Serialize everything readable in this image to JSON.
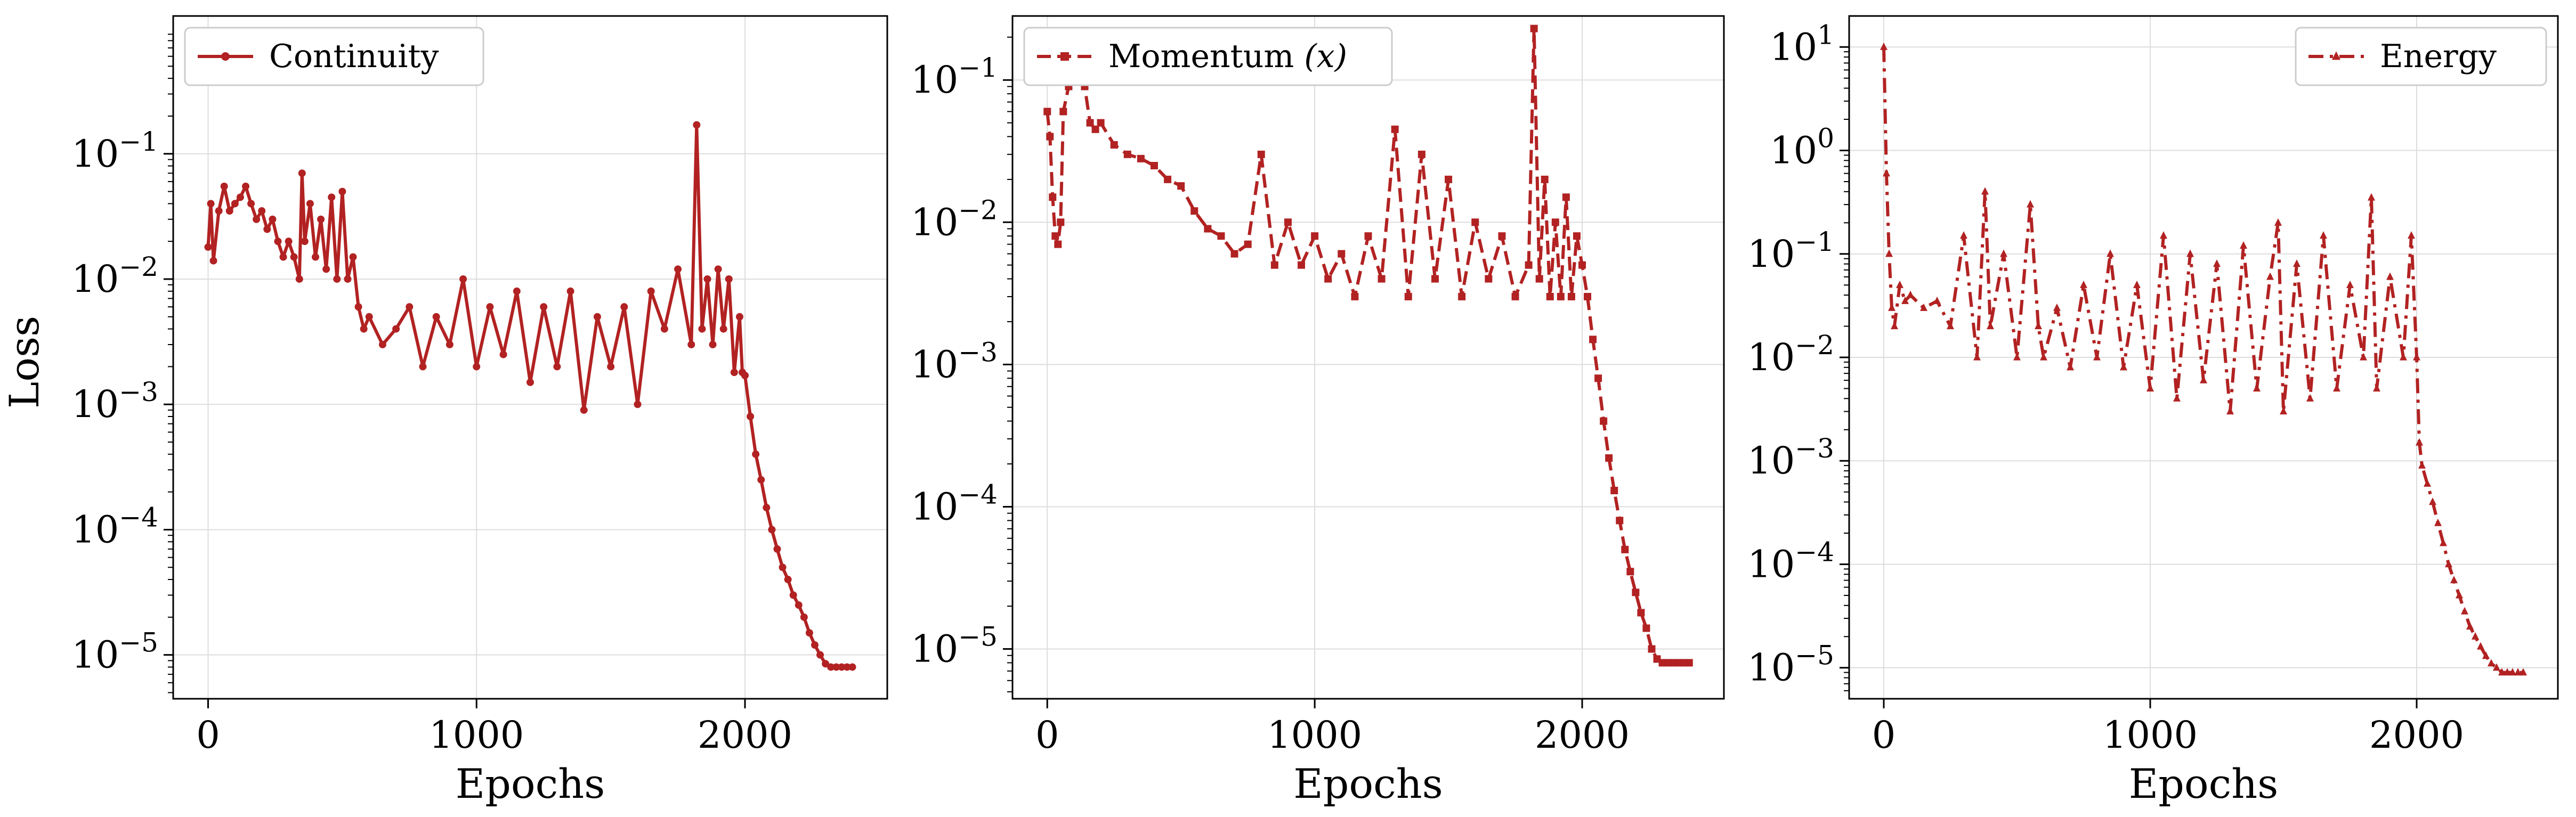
{
  "figure": {
    "ylabel": "Loss",
    "line_color": "#b22222",
    "grid": true
  },
  "chart_data": [
    {
      "type": "line",
      "title": "",
      "xlabel": "Epochs",
      "ylabel": "Loss",
      "yscale": "log",
      "xlim": [
        -130,
        2530
      ],
      "ylim_exponent": [
        -5.35,
        0.1
      ],
      "xticks": [
        {
          "value": 0,
          "label": "0"
        },
        {
          "value": 1000,
          "label": "1000"
        },
        {
          "value": 2000,
          "label": "2000"
        }
      ],
      "yticks": [
        {
          "exp": -5,
          "base": "10",
          "sup": "−5"
        },
        {
          "exp": -4,
          "base": "10",
          "sup": "−4"
        },
        {
          "exp": -3,
          "base": "10",
          "sup": "−3"
        },
        {
          "exp": -2,
          "base": "10",
          "sup": "−2"
        },
        {
          "exp": -1,
          "base": "10",
          "sup": "−1"
        }
      ],
      "legend": {
        "position": "upper-left",
        "label": "Continuity",
        "marker": "circle",
        "linestyle": "solid"
      },
      "series": [
        {
          "name": "Continuity",
          "color": "#b22222",
          "x": [
            0,
            10,
            20,
            40,
            60,
            80,
            100,
            120,
            140,
            160,
            180,
            200,
            220,
            240,
            260,
            280,
            300,
            320,
            340,
            350,
            360,
            380,
            400,
            420,
            440,
            460,
            480,
            500,
            520,
            540,
            560,
            580,
            600,
            650,
            700,
            750,
            800,
            850,
            900,
            950,
            1000,
            1050,
            1100,
            1150,
            1200,
            1250,
            1300,
            1350,
            1400,
            1450,
            1500,
            1550,
            1600,
            1650,
            1700,
            1750,
            1800,
            1820,
            1840,
            1860,
            1880,
            1900,
            1920,
            1940,
            1960,
            1980,
            1990,
            2000,
            2020,
            2040,
            2060,
            2080,
            2100,
            2120,
            2140,
            2160,
            2180,
            2200,
            2220,
            2240,
            2260,
            2280,
            2300,
            2320,
            2340,
            2360,
            2380,
            2400
          ],
          "y": [
            0.018,
            0.04,
            0.014,
            0.035,
            0.055,
            0.035,
            0.04,
            0.045,
            0.055,
            0.04,
            0.03,
            0.035,
            0.025,
            0.03,
            0.02,
            0.015,
            0.02,
            0.015,
            0.01,
            0.07,
            0.02,
            0.04,
            0.015,
            0.03,
            0.012,
            0.045,
            0.01,
            0.05,
            0.01,
            0.015,
            0.006,
            0.004,
            0.005,
            0.003,
            0.004,
            0.006,
            0.002,
            0.005,
            0.003,
            0.01,
            0.002,
            0.006,
            0.0025,
            0.008,
            0.0015,
            0.006,
            0.002,
            0.008,
            0.0009,
            0.005,
            0.002,
            0.006,
            0.001,
            0.008,
            0.004,
            0.012,
            0.003,
            0.17,
            0.004,
            0.01,
            0.003,
            0.012,
            0.004,
            0.01,
            0.0018,
            0.005,
            0.0018,
            0.0017,
            0.0008,
            0.0004,
            0.00025,
            0.00015,
            0.0001,
            7e-05,
            5e-05,
            4e-05,
            3e-05,
            2.5e-05,
            2e-05,
            1.5e-05,
            1.2e-05,
            1e-05,
            8.5e-06,
            8e-06,
            8e-06,
            8e-06,
            8e-06,
            8e-06
          ]
        }
      ]
    },
    {
      "type": "line",
      "title": "",
      "xlabel": "Epochs",
      "ylabel": "",
      "yscale": "log",
      "xlim": [
        -130,
        2530
      ],
      "ylim_exponent": [
        -5.35,
        -0.55
      ],
      "xticks": [
        {
          "value": 0,
          "label": "0"
        },
        {
          "value": 1000,
          "label": "1000"
        },
        {
          "value": 2000,
          "label": "2000"
        }
      ],
      "yticks": [
        {
          "exp": -5,
          "base": "10",
          "sup": "−5"
        },
        {
          "exp": -4,
          "base": "10",
          "sup": "−4"
        },
        {
          "exp": -3,
          "base": "10",
          "sup": "−3"
        },
        {
          "exp": -2,
          "base": "10",
          "sup": "−2"
        },
        {
          "exp": -1,
          "base": "10",
          "sup": "−1"
        }
      ],
      "legend": {
        "position": "upper-left",
        "label": "Momentum",
        "label_math": "(x)",
        "marker": "square",
        "linestyle": "dashed"
      },
      "series": [
        {
          "name": "Momentum (x)",
          "color": "#b22222",
          "x": [
            0,
            10,
            20,
            30,
            40,
            50,
            60,
            80,
            100,
            120,
            140,
            160,
            180,
            200,
            250,
            300,
            350,
            400,
            450,
            500,
            550,
            600,
            650,
            700,
            750,
            800,
            850,
            900,
            950,
            1000,
            1050,
            1100,
            1150,
            1200,
            1250,
            1300,
            1350,
            1400,
            1450,
            1500,
            1550,
            1600,
            1650,
            1700,
            1750,
            1800,
            1820,
            1840,
            1860,
            1880,
            1900,
            1920,
            1940,
            1960,
            1980,
            2000,
            2020,
            2040,
            2060,
            2080,
            2100,
            2120,
            2140,
            2160,
            2180,
            2200,
            2220,
            2240,
            2260,
            2280,
            2300,
            2320,
            2340,
            2360,
            2380,
            2400
          ],
          "y": [
            0.06,
            0.04,
            0.015,
            0.008,
            0.007,
            0.01,
            0.06,
            0.09,
            0.1,
            0.1,
            0.09,
            0.05,
            0.045,
            0.05,
            0.035,
            0.03,
            0.028,
            0.025,
            0.02,
            0.018,
            0.012,
            0.009,
            0.008,
            0.006,
            0.007,
            0.03,
            0.005,
            0.01,
            0.005,
            0.008,
            0.004,
            0.006,
            0.003,
            0.008,
            0.004,
            0.045,
            0.003,
            0.03,
            0.004,
            0.02,
            0.003,
            0.01,
            0.004,
            0.008,
            0.003,
            0.005,
            0.23,
            0.004,
            0.02,
            0.003,
            0.01,
            0.003,
            0.015,
            0.003,
            0.008,
            0.005,
            0.003,
            0.0015,
            0.0008,
            0.0004,
            0.00022,
            0.00013,
            8e-05,
            5e-05,
            3.5e-05,
            2.5e-05,
            1.8e-05,
            1.4e-05,
            1e-05,
            8.5e-06,
            8e-06,
            8e-06,
            8e-06,
            8e-06,
            8e-06,
            8e-06
          ]
        }
      ]
    },
    {
      "type": "line",
      "title": "",
      "xlabel": "Epochs",
      "ylabel": "",
      "yscale": "log",
      "xlim": [
        -130,
        2530
      ],
      "ylim_exponent": [
        -5.3,
        1.3
      ],
      "xticks": [
        {
          "value": 0,
          "label": "0"
        },
        {
          "value": 1000,
          "label": "1000"
        },
        {
          "value": 2000,
          "label": "2000"
        }
      ],
      "yticks": [
        {
          "exp": -5,
          "base": "10",
          "sup": "−5"
        },
        {
          "exp": -4,
          "base": "10",
          "sup": "−4"
        },
        {
          "exp": -3,
          "base": "10",
          "sup": "−3"
        },
        {
          "exp": -2,
          "base": "10",
          "sup": "−2"
        },
        {
          "exp": -1,
          "base": "10",
          "sup": "−1"
        },
        {
          "exp": 0,
          "base": "10",
          "sup": "0"
        },
        {
          "exp": 1,
          "base": "10",
          "sup": "1"
        }
      ],
      "legend": {
        "position": "upper-right",
        "label": "Energy",
        "marker": "triangle",
        "linestyle": "dashdot"
      },
      "series": [
        {
          "name": "Energy",
          "color": "#b22222",
          "x": [
            0,
            10,
            20,
            30,
            40,
            60,
            80,
            100,
            150,
            200,
            250,
            300,
            350,
            380,
            400,
            450,
            500,
            550,
            580,
            600,
            650,
            700,
            750,
            800,
            850,
            900,
            950,
            1000,
            1050,
            1100,
            1150,
            1200,
            1250,
            1300,
            1350,
            1400,
            1450,
            1480,
            1500,
            1550,
            1600,
            1650,
            1700,
            1750,
            1800,
            1830,
            1850,
            1900,
            1950,
            1980,
            2000,
            2010,
            2020,
            2040,
            2060,
            2080,
            2100,
            2120,
            2140,
            2160,
            2180,
            2200,
            2220,
            2240,
            2260,
            2280,
            2300,
            2320,
            2340,
            2360,
            2380,
            2400
          ],
          "y": [
            10,
            0.6,
            0.1,
            0.03,
            0.02,
            0.05,
            0.035,
            0.04,
            0.03,
            0.035,
            0.02,
            0.15,
            0.01,
            0.4,
            0.02,
            0.1,
            0.01,
            0.3,
            0.02,
            0.01,
            0.03,
            0.008,
            0.05,
            0.01,
            0.1,
            0.008,
            0.05,
            0.005,
            0.15,
            0.004,
            0.1,
            0.006,
            0.08,
            0.003,
            0.12,
            0.005,
            0.06,
            0.2,
            0.003,
            0.08,
            0.004,
            0.15,
            0.005,
            0.05,
            0.01,
            0.35,
            0.005,
            0.06,
            0.01,
            0.15,
            0.01,
            0.0015,
            0.0009,
            0.0006,
            0.0004,
            0.00025,
            0.00016,
            0.0001,
            7e-05,
            5e-05,
            3.5e-05,
            2.5e-05,
            2e-05,
            1.6e-05,
            1.3e-05,
            1.1e-05,
            1e-05,
            9e-06,
            9e-06,
            9e-06,
            9e-06,
            9e-06
          ]
        }
      ]
    }
  ]
}
